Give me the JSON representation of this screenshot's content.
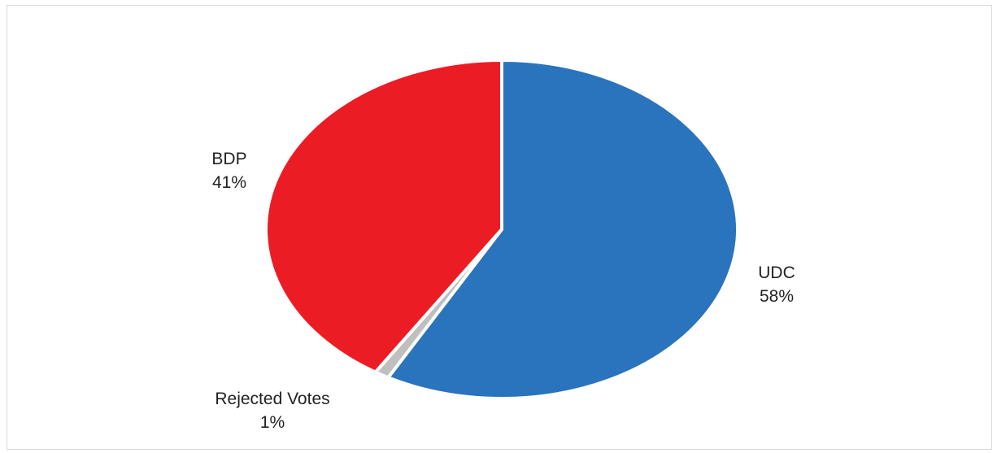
{
  "chart_data": {
    "type": "pie",
    "title": "",
    "slices": [
      {
        "label": "UDC",
        "value": 58,
        "value_label": "58%",
        "color": "#2A73BD"
      },
      {
        "label": "Rejected Votes",
        "value": 1,
        "value_label": "1%",
        "color": "#BFBFBF"
      },
      {
        "label": "BDP",
        "value": 41,
        "value_label": "41%",
        "color": "#EC1C24"
      }
    ],
    "start_angle": "12 o'clock",
    "direction": "clockwise",
    "legend": "none",
    "data_labels": "outside, category name and percentage"
  }
}
